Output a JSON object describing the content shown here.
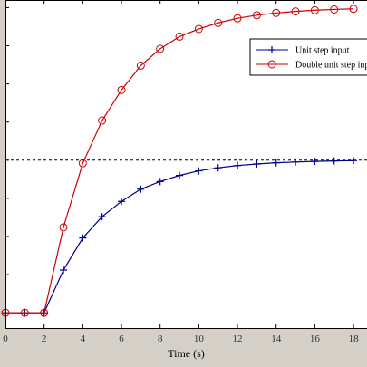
{
  "chart_data": {
    "type": "line",
    "xlabel": "Time (s)",
    "xlim": [
      0,
      18.7
    ],
    "ylim": [
      -0.1,
      2.05
    ],
    "x_ticks": [
      0,
      2,
      4,
      6,
      8,
      10,
      12,
      14,
      16,
      18
    ],
    "reference_line": {
      "y": 1,
      "style": "dashed",
      "color": "#000000"
    },
    "grid": false,
    "legend_position": "top-right",
    "series": [
      {
        "name": "Unit step input",
        "color": "#00008b",
        "marker": "plus",
        "x": [
          0,
          1,
          2,
          3,
          4,
          5,
          6,
          7,
          8,
          9,
          10,
          11,
          12,
          13,
          14,
          15,
          16,
          17,
          18
        ],
        "y": [
          0,
          0,
          0,
          0.28,
          0.49,
          0.63,
          0.73,
          0.81,
          0.86,
          0.9,
          0.93,
          0.95,
          0.965,
          0.975,
          0.983,
          0.988,
          0.992,
          0.995,
          0.997
        ]
      },
      {
        "name": "Double unit step input",
        "color": "#cc0000",
        "marker": "circle",
        "x": [
          0,
          1,
          2,
          3,
          4,
          5,
          6,
          7,
          8,
          9,
          10,
          11,
          12,
          13,
          14,
          15,
          16,
          17,
          18
        ],
        "y": [
          0,
          0,
          0,
          0.56,
          0.98,
          1.26,
          1.46,
          1.62,
          1.73,
          1.81,
          1.86,
          1.9,
          1.93,
          1.95,
          1.965,
          1.975,
          1.983,
          1.988,
          1.992
        ]
      }
    ]
  }
}
